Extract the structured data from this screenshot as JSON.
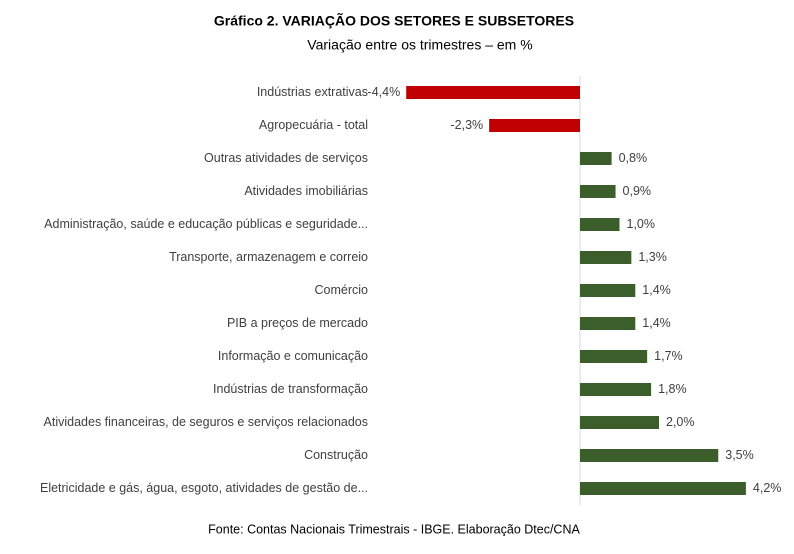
{
  "chart_data": {
    "type": "bar",
    "orientation": "horizontal",
    "title": "Gráfico 2. VARIAÇÃO DOS SETORES E SUBSETORES",
    "subtitle": "Variação entre os trimestres – em %",
    "source": "Fonte: Contas Nacionais Trimestrais - IBGE. Elaboração Dtec/CNA",
    "categories": [
      "Indústrias extrativas",
      "Agropecuária - total",
      "Outras atividades de serviços",
      "Atividades imobiliárias",
      "Administração, saúde e educação públicas e seguridade...",
      "Transporte, armazenagem e correio",
      "Comércio",
      "PIB a preços de mercado",
      "Informação e comunicação",
      "Indústrias de transformação",
      "Atividades financeiras, de seguros e serviços relacionados",
      "Construção",
      "Eletricidade e gás, água, esgoto, atividades de gestão de..."
    ],
    "values": [
      -4.4,
      -2.3,
      0.8,
      0.9,
      1.0,
      1.3,
      1.4,
      1.4,
      1.7,
      1.8,
      2.0,
      3.5,
      4.2
    ],
    "value_labels": [
      "-4,4%",
      "-2,3%",
      "0,8%",
      "0,9%",
      "1,0%",
      "1,3%",
      "1,4%",
      "1,4%",
      "1,7%",
      "1,8%",
      "2,0%",
      "3,5%",
      "4,2%"
    ],
    "color": "#3b5e2b",
    "negative_color": "#c00000",
    "xlim": [
      -5,
      5
    ]
  }
}
